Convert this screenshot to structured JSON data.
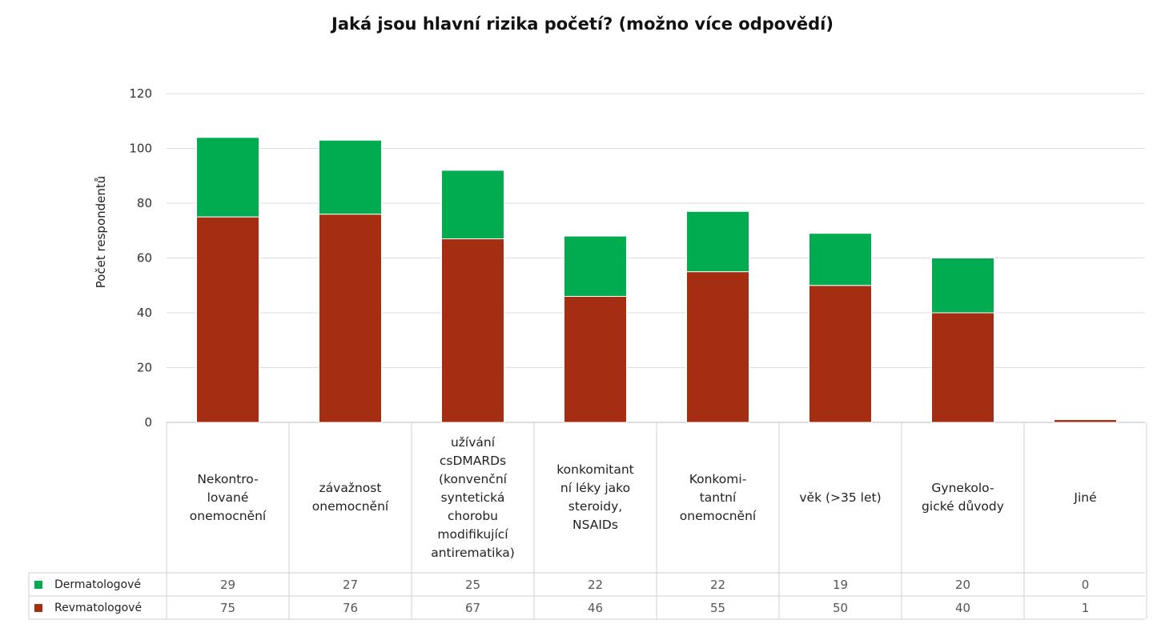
{
  "chart_data": {
    "type": "bar",
    "stacked": true,
    "title": "Jaká jsou hlavní rizika početí? (možno více odpovědí)",
    "ylabel": "Počet respondentů",
    "xlabel": "",
    "ylim": [
      0,
      120
    ],
    "yticks": [
      0,
      20,
      40,
      60,
      80,
      100,
      120
    ],
    "grid": true,
    "legend": "table-left-bottom",
    "categories": [
      "Nekontro-\nlované\nonemocnění",
      "závažnost\nonemocnění",
      "užívání\ncsDMARDs\n(konvenční\nsyntetická\nchorobu\nmodifikující\nantirematika)",
      "konkomitant\nní léky jako\nsteroidy,\nNSAIDs",
      "Konkomi-\ntantní\nonemocnění",
      "věk (>35 let)",
      "Gynekolo-\ngické důvody",
      "Jiné"
    ],
    "series": [
      {
        "name": "Revmatologové",
        "color": "#a52d12",
        "values": [
          75,
          76,
          67,
          46,
          55,
          50,
          40,
          1
        ]
      },
      {
        "name": "Dermatologové",
        "color": "#00ac4f",
        "values": [
          29,
          27,
          25,
          22,
          22,
          19,
          20,
          0
        ]
      }
    ],
    "table_rows": [
      {
        "name": "Dermatologové",
        "color": "#00ac4f",
        "values": [
          29,
          27,
          25,
          22,
          22,
          19,
          20,
          0
        ]
      },
      {
        "name": "Revmatologové",
        "color": "#a52d12",
        "values": [
          75,
          76,
          67,
          46,
          55,
          50,
          40,
          1
        ]
      }
    ]
  }
}
